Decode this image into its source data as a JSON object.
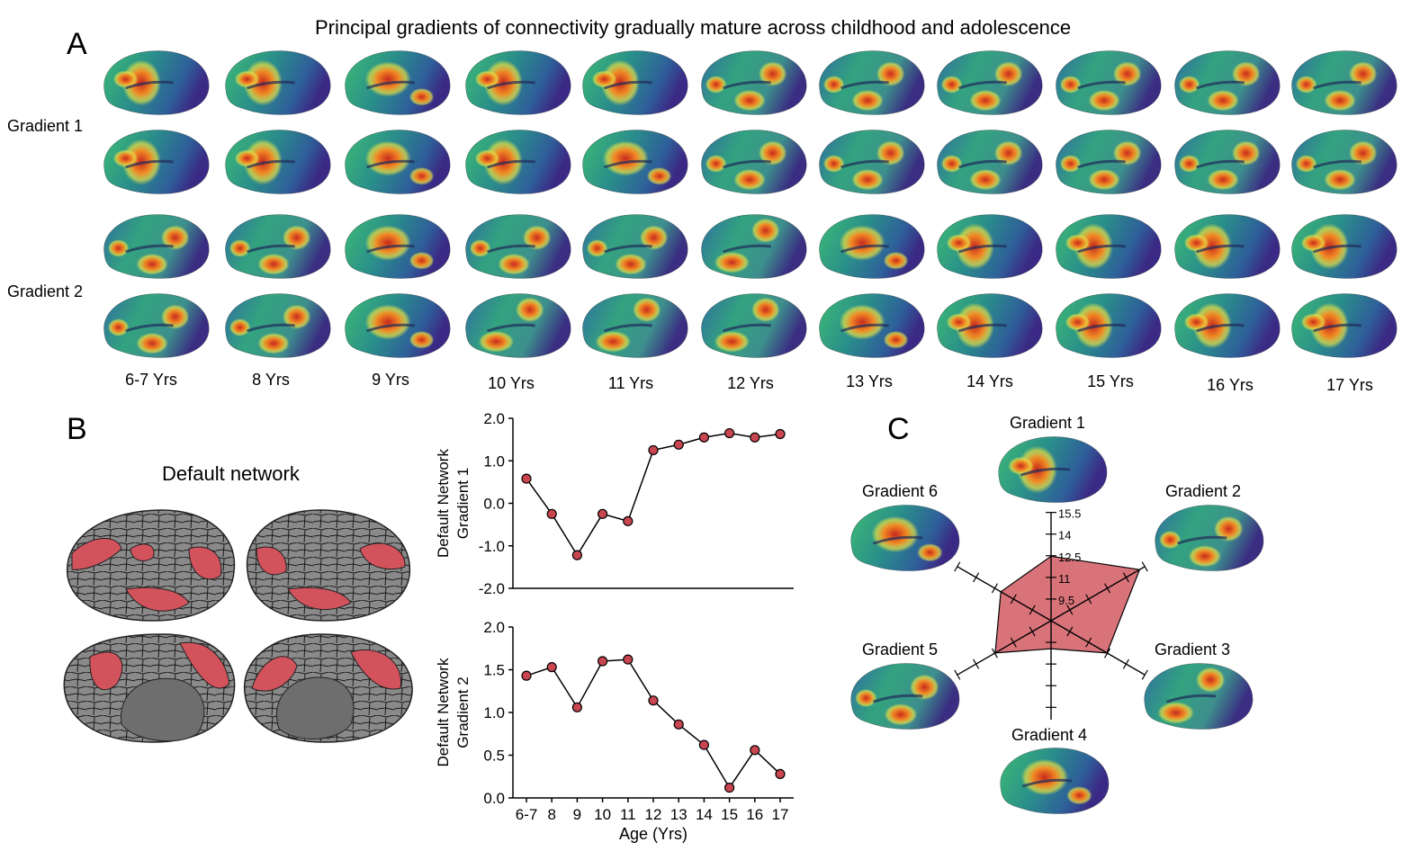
{
  "panel_a": {
    "letter": "A",
    "title": "Principal gradients of connectivity gradually mature across childhood and adolescence",
    "row_labels": [
      "Gradient 1",
      "Gradient 2"
    ],
    "age_labels": [
      "6-7 Yrs",
      "8 Yrs",
      "9 Yrs",
      "10 Yrs",
      "11 Yrs",
      "12 Yrs",
      "13 Yrs",
      "14 Yrs",
      "15 Yrs",
      "16 Yrs",
      "17 Yrs"
    ]
  },
  "panel_b": {
    "letter": "B",
    "network_title": "Default network",
    "network_color": "#d2535c"
  },
  "panel_c": {
    "letter": "C",
    "gradient_labels": [
      "Gradient 1",
      "Gradient 2",
      "Gradient 3",
      "Gradient 4",
      "Gradient 5",
      "Gradient 6"
    ],
    "axis_ticks": [
      "15.5",
      "14",
      "12.5",
      "11",
      "9.5"
    ],
    "polygon_color": "#d9737a"
  },
  "chart_data": [
    {
      "type": "line",
      "ylabel": "Default Network Gradient 1",
      "ylabel_lines": [
        "Default Network",
        "Gradient 1"
      ],
      "x": [
        "6-7",
        "8",
        "9",
        "10",
        "11",
        "12",
        "13",
        "14",
        "15",
        "16",
        "17"
      ],
      "values": [
        0.58,
        -0.25,
        -1.22,
        -0.25,
        -0.42,
        1.25,
        1.38,
        1.55,
        1.65,
        1.55,
        1.63
      ],
      "ylim": [
        -2.0,
        2.0
      ],
      "yticks": [
        "-2.0",
        "-1.0",
        "0.0",
        "1.0",
        "2.0"
      ],
      "marker_color": "#c9454f"
    },
    {
      "type": "line",
      "ylabel": "Default Network Gradient 2",
      "ylabel_lines": [
        "Default Network",
        "Gradient 2"
      ],
      "xlabel": "Age (Yrs)",
      "x": [
        "6-7",
        "8",
        "9",
        "10",
        "11",
        "12",
        "13",
        "14",
        "15",
        "16",
        "17"
      ],
      "values": [
        1.43,
        1.53,
        1.06,
        1.6,
        1.62,
        1.14,
        0.86,
        0.62,
        0.12,
        0.56,
        0.28
      ],
      "ylim": [
        0.0,
        2.0
      ],
      "yticks": [
        "0.0",
        "0.5",
        "1.0",
        "1.5",
        "2.0"
      ],
      "marker_color": "#c9454f"
    },
    {
      "type": "radar",
      "categories": [
        "Gradient 1",
        "Gradient 2",
        "Gradient 3",
        "Gradient 4",
        "Gradient 5",
        "Gradient 6"
      ],
      "values": [
        12.3,
        15.2,
        12.3,
        9.5,
        12.3,
        11.8
      ],
      "ylim": [
        8,
        15.5
      ]
    }
  ]
}
